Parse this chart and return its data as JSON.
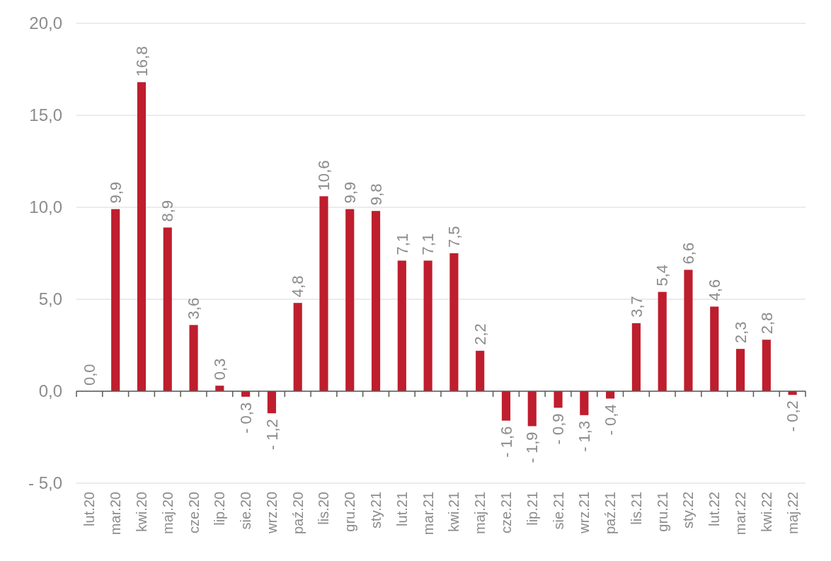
{
  "chart_data": {
    "type": "bar",
    "categories": [
      "lut.20",
      "mar.20",
      "kwi.20",
      "maj.20",
      "cze.20",
      "lip.20",
      "sie.20",
      "wrz.20",
      "paź.20",
      "lis.20",
      "gru.20",
      "sty.21",
      "lut.21",
      "mar.21",
      "kwi.21",
      "maj.21",
      "cze.21",
      "lip.21",
      "sie.21",
      "wrz.21",
      "paź.21",
      "lis.21",
      "gru.21",
      "sty.22",
      "lut.22",
      "mar.22",
      "kwi.22",
      "maj.22"
    ],
    "values": [
      0.0,
      9.9,
      16.8,
      8.9,
      3.6,
      0.3,
      -0.3,
      -1.2,
      4.8,
      10.6,
      9.9,
      9.8,
      7.1,
      7.1,
      7.5,
      2.2,
      -1.6,
      -1.9,
      -0.9,
      -1.3,
      -0.4,
      3.7,
      5.4,
      6.6,
      4.6,
      2.3,
      2.8,
      -0.2
    ],
    "value_labels": [
      "0,0",
      "9,9",
      "16,8",
      "8,9",
      "3,6",
      "0,3",
      "- 0,3",
      "- 1,2",
      "4,8",
      "10,6",
      "9,9",
      "9,8",
      "7,1",
      "7,1",
      "7,5",
      "2,2",
      "- 1,6",
      "- 1,9",
      "- 0,9",
      "- 1,3",
      "- 0,4",
      "3,7",
      "5,4",
      "6,6",
      "4,6",
      "2,3",
      "2,8",
      "- 0,2"
    ],
    "color": "#be1e2d",
    "ylim": [
      -5,
      20
    ],
    "yticks": [
      {
        "value": -5,
        "label": "- 5,0"
      },
      {
        "value": 0,
        "label": "0,0"
      },
      {
        "value": 5,
        "label": "5,0"
      },
      {
        "value": 10,
        "label": "10,0"
      },
      {
        "value": 15,
        "label": "15,0"
      },
      {
        "value": 20,
        "label": "20,0"
      }
    ],
    "grid": "y"
  }
}
